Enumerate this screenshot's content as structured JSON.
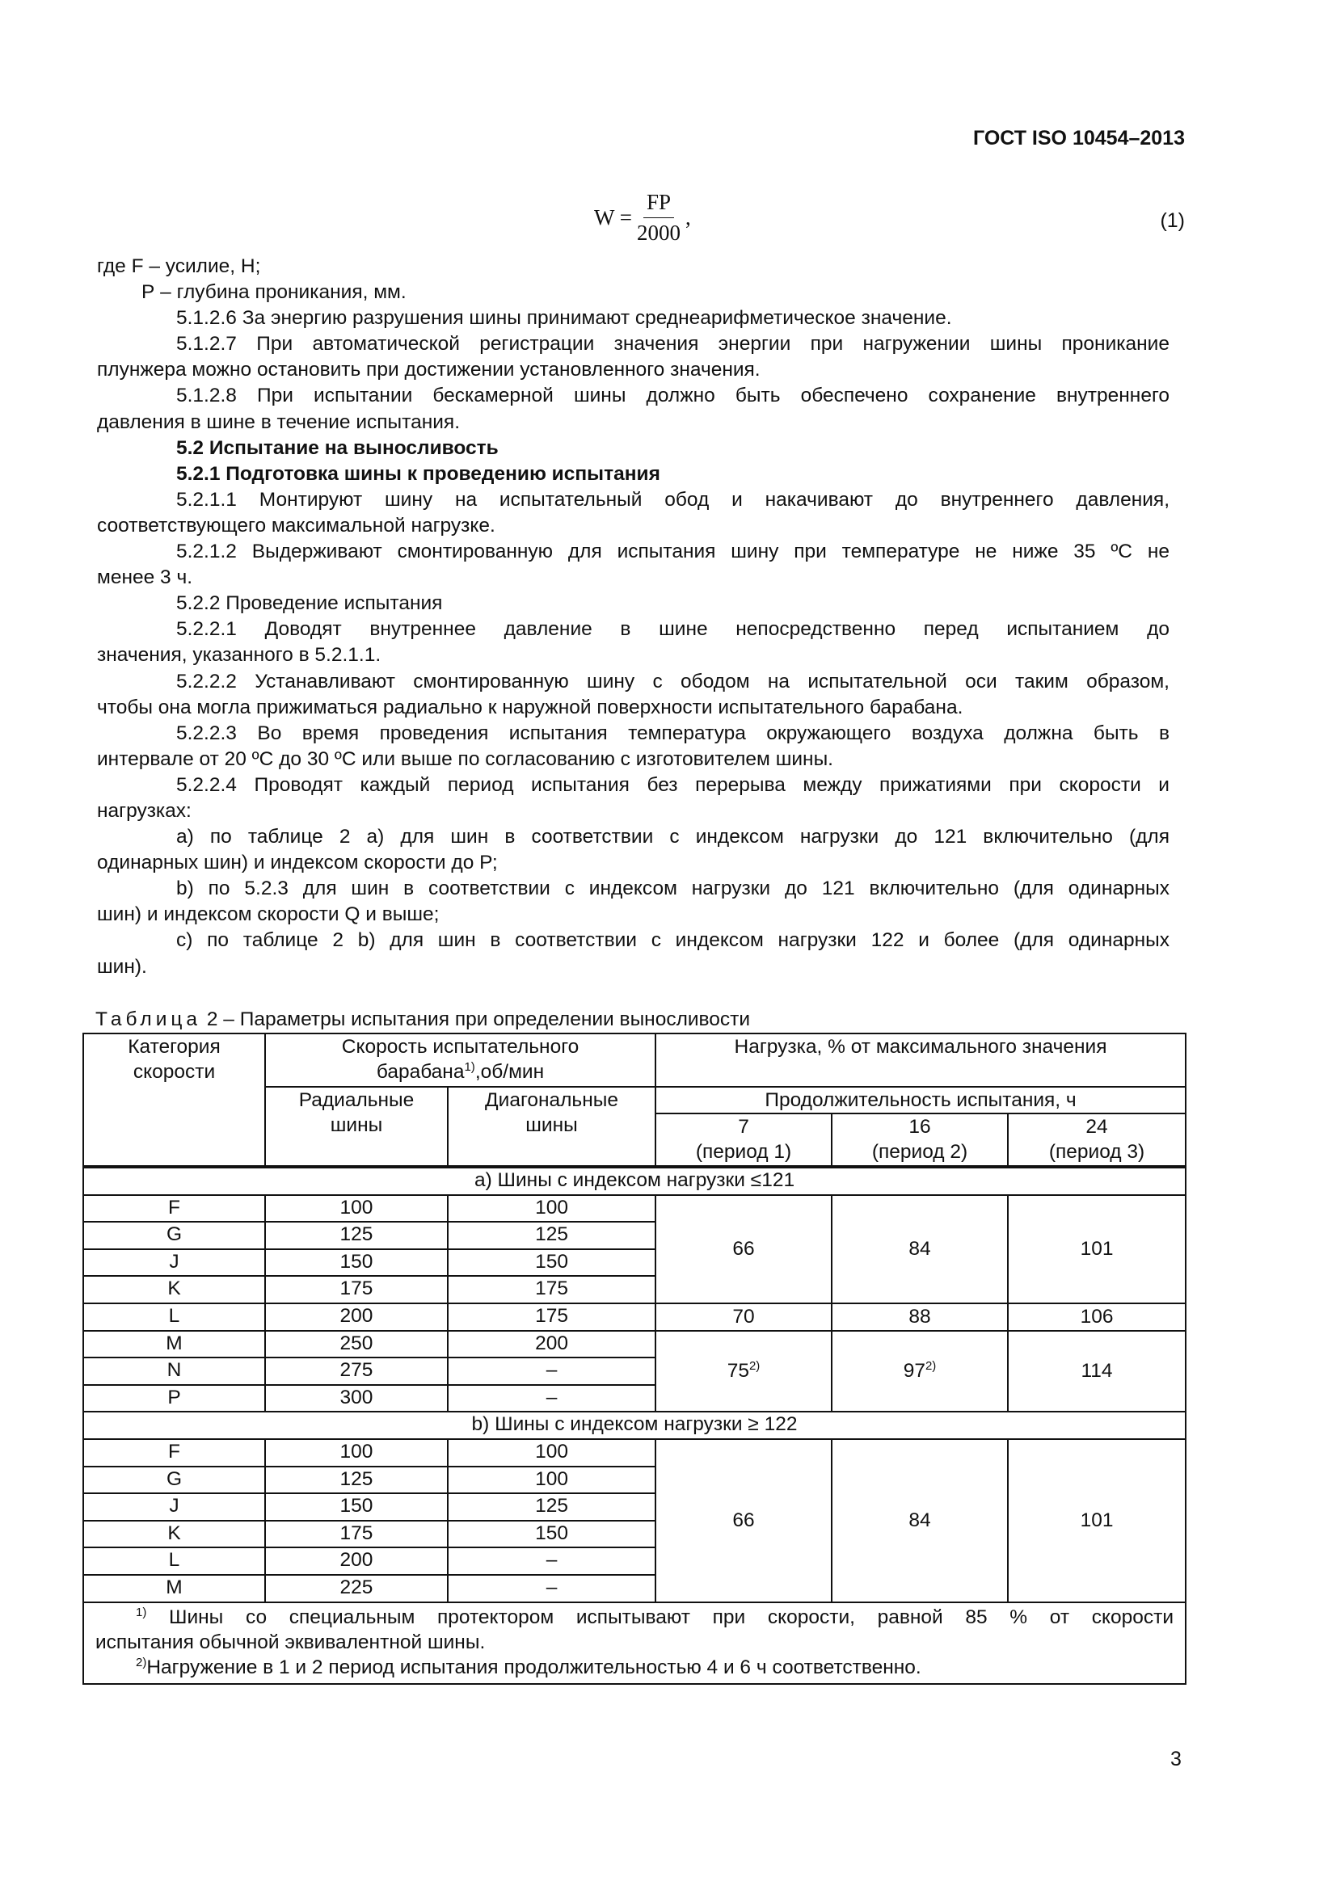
{
  "header": {
    "doc_id": "ГОСТ ISO 10454–2013"
  },
  "formula": {
    "lhs": "W =",
    "numerator": "FP",
    "denominator": "2000",
    "tail": ",",
    "number": "(1)"
  },
  "body": {
    "where": [
      "где  F – усилие, Н;",
      "Р – глубина проникания, мм."
    ],
    "p5126": [
      "5.1.2.6 За энергию разрушения шины принимают среднеарифметическое значение."
    ],
    "p5127": [
      "5.1.2.7 При автоматической регистрации значения энергии при нагружении шины проникание",
      "плунжера можно остановить при достижении установленного значения."
    ],
    "p5128": [
      "5.1.2.8 При испытании бескамерной шины должно быть обеспечено сохранение внутреннего",
      "давления в шине в течение испытания."
    ],
    "h52": "5.2 Испытание на выносливость",
    "h521": "5.2.1 Подготовка шины к проведению испытания",
    "p5211": [
      "5.2.1.1 Монтируют шину на испытательный обод и накачивают до внутреннего давления,",
      "соответствующего максимальной нагрузке."
    ],
    "p5212": [
      "5.2.1.2 Выдерживают смонтированную для испытания шину при температуре не ниже 35 ºС не",
      "менее 3 ч."
    ],
    "h522": "5.2.2 Проведение испытания",
    "p5221": [
      "5.2.2.1 Доводят внутреннее давление в шине непосредственно перед испытанием до",
      "значения, указанного в 5.2.1.1."
    ],
    "p5222": [
      "5.2.2.2 Устанавливают смонтированную шину с ободом на испытательной оси таким образом,",
      "чтобы она могла прижиматься радиально к наружной поверхности испытательного барабана."
    ],
    "p5223": [
      "5.2.2.3 Во время проведения испытания температура окружающего воздуха должна быть в",
      "интервале от 20 ºС до 30 ºС или выше по согласованию с изготовителем шины."
    ],
    "p5224": [
      "5.2.2.4 Проводят каждый период испытания без перерыва между прижатиями при скорости и",
      "нагрузках:"
    ],
    "pa": [
      "а) по таблице 2 а) для шин в соответствии с индексом нагрузки до 121 включительно (для",
      "одинарных шин) и индексом скорости до Р;"
    ],
    "pb": [
      "b) по 5.2.3 для шин в соответствии с индексом нагрузки до 121 включительно (для одинарных",
      "шин) и индексом скорости Q и выше;"
    ],
    "pc": [
      "c) по таблице 2 b) для шин в соответствии с индексом нагрузки 122 и более (для одинарных",
      "шин)."
    ]
  },
  "table": {
    "caption_word": "Таблица",
    "caption_rest": "2 – Параметры испытания при определении выносливости",
    "headers": {
      "category": [
        "Категория",
        "скорости"
      ],
      "speed": [
        "Скорость испытательного",
        "барабана",
        ",об/мин"
      ],
      "speed_sup": "1)",
      "load": "Нагрузка, % от максимального значения",
      "radial": [
        "Радиальные",
        "шины"
      ],
      "diagonal": [
        "Диагональные",
        "шины"
      ],
      "duration": "Продолжительность испытания, ч",
      "periods": [
        {
          "h": "7",
          "p": "(период 1)"
        },
        {
          "h": "16",
          "p": "(период 2)"
        },
        {
          "h": "24",
          "p": "(период 3)"
        }
      ]
    },
    "section_a": {
      "title": "а) Шины с индексом нагрузки ≤121",
      "rows": [
        [
          "F",
          "100",
          "100"
        ],
        [
          "G",
          "125",
          "125"
        ],
        [
          "J",
          "150",
          "150"
        ],
        [
          "K",
          "175",
          "175"
        ],
        [
          "L",
          "200",
          "175"
        ],
        [
          "M",
          "250",
          "200"
        ],
        [
          "N",
          "275",
          "–"
        ],
        [
          "P",
          "300",
          "–"
        ]
      ],
      "loads_FK": [
        "66",
        "84",
        "101"
      ],
      "loads_L": [
        "70",
        "88",
        "106"
      ],
      "loads_MP": [
        "75",
        "97",
        "114"
      ],
      "loads_MP_sup": "2)"
    },
    "section_b": {
      "title": "b) Шины с индексом нагрузки ≥ 122",
      "rows": [
        [
          "F",
          "100",
          "100"
        ],
        [
          "G",
          "125",
          "100"
        ],
        [
          "J",
          "150",
          "125"
        ],
        [
          "K",
          "175",
          "150"
        ],
        [
          "L",
          "200",
          "–"
        ],
        [
          "M",
          "225",
          "–"
        ]
      ],
      "loads": [
        "66",
        "84",
        "101"
      ]
    },
    "footnotes": {
      "n1_sup": "1)",
      "n1": [
        "Шины со специальным протектором испытывают при скорости, равной 85 % от скорости",
        "испытания обычной эквивалентной шины."
      ],
      "n2_sup": "2)",
      "n2": "Нагружение в 1 и 2 период испытания продолжительностью 4 и 6 ч соответственно."
    }
  },
  "page_number": "3"
}
